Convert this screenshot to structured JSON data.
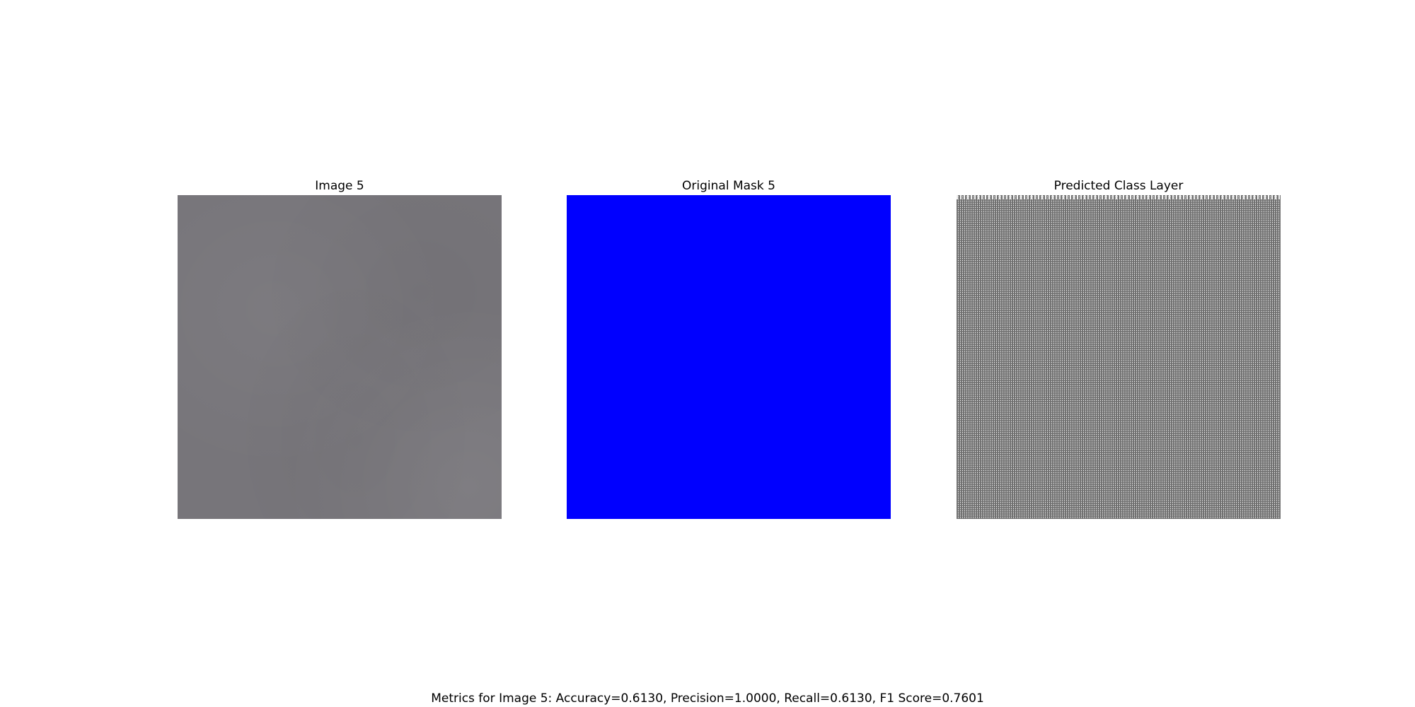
{
  "panels": [
    {
      "title": "Image 5",
      "colors": {
        "fill": "#77757a"
      }
    },
    {
      "title": "Original Mask 5",
      "colors": {
        "fill": "#0000ff"
      }
    },
    {
      "title": "Predicted Class Layer",
      "colors": {
        "fill": "#6e6e6e"
      }
    }
  ],
  "metrics_text": "Metrics for Image 5: Accuracy=0.6130, Precision=1.0000, Recall=0.6130, F1 Score=0.7601"
}
